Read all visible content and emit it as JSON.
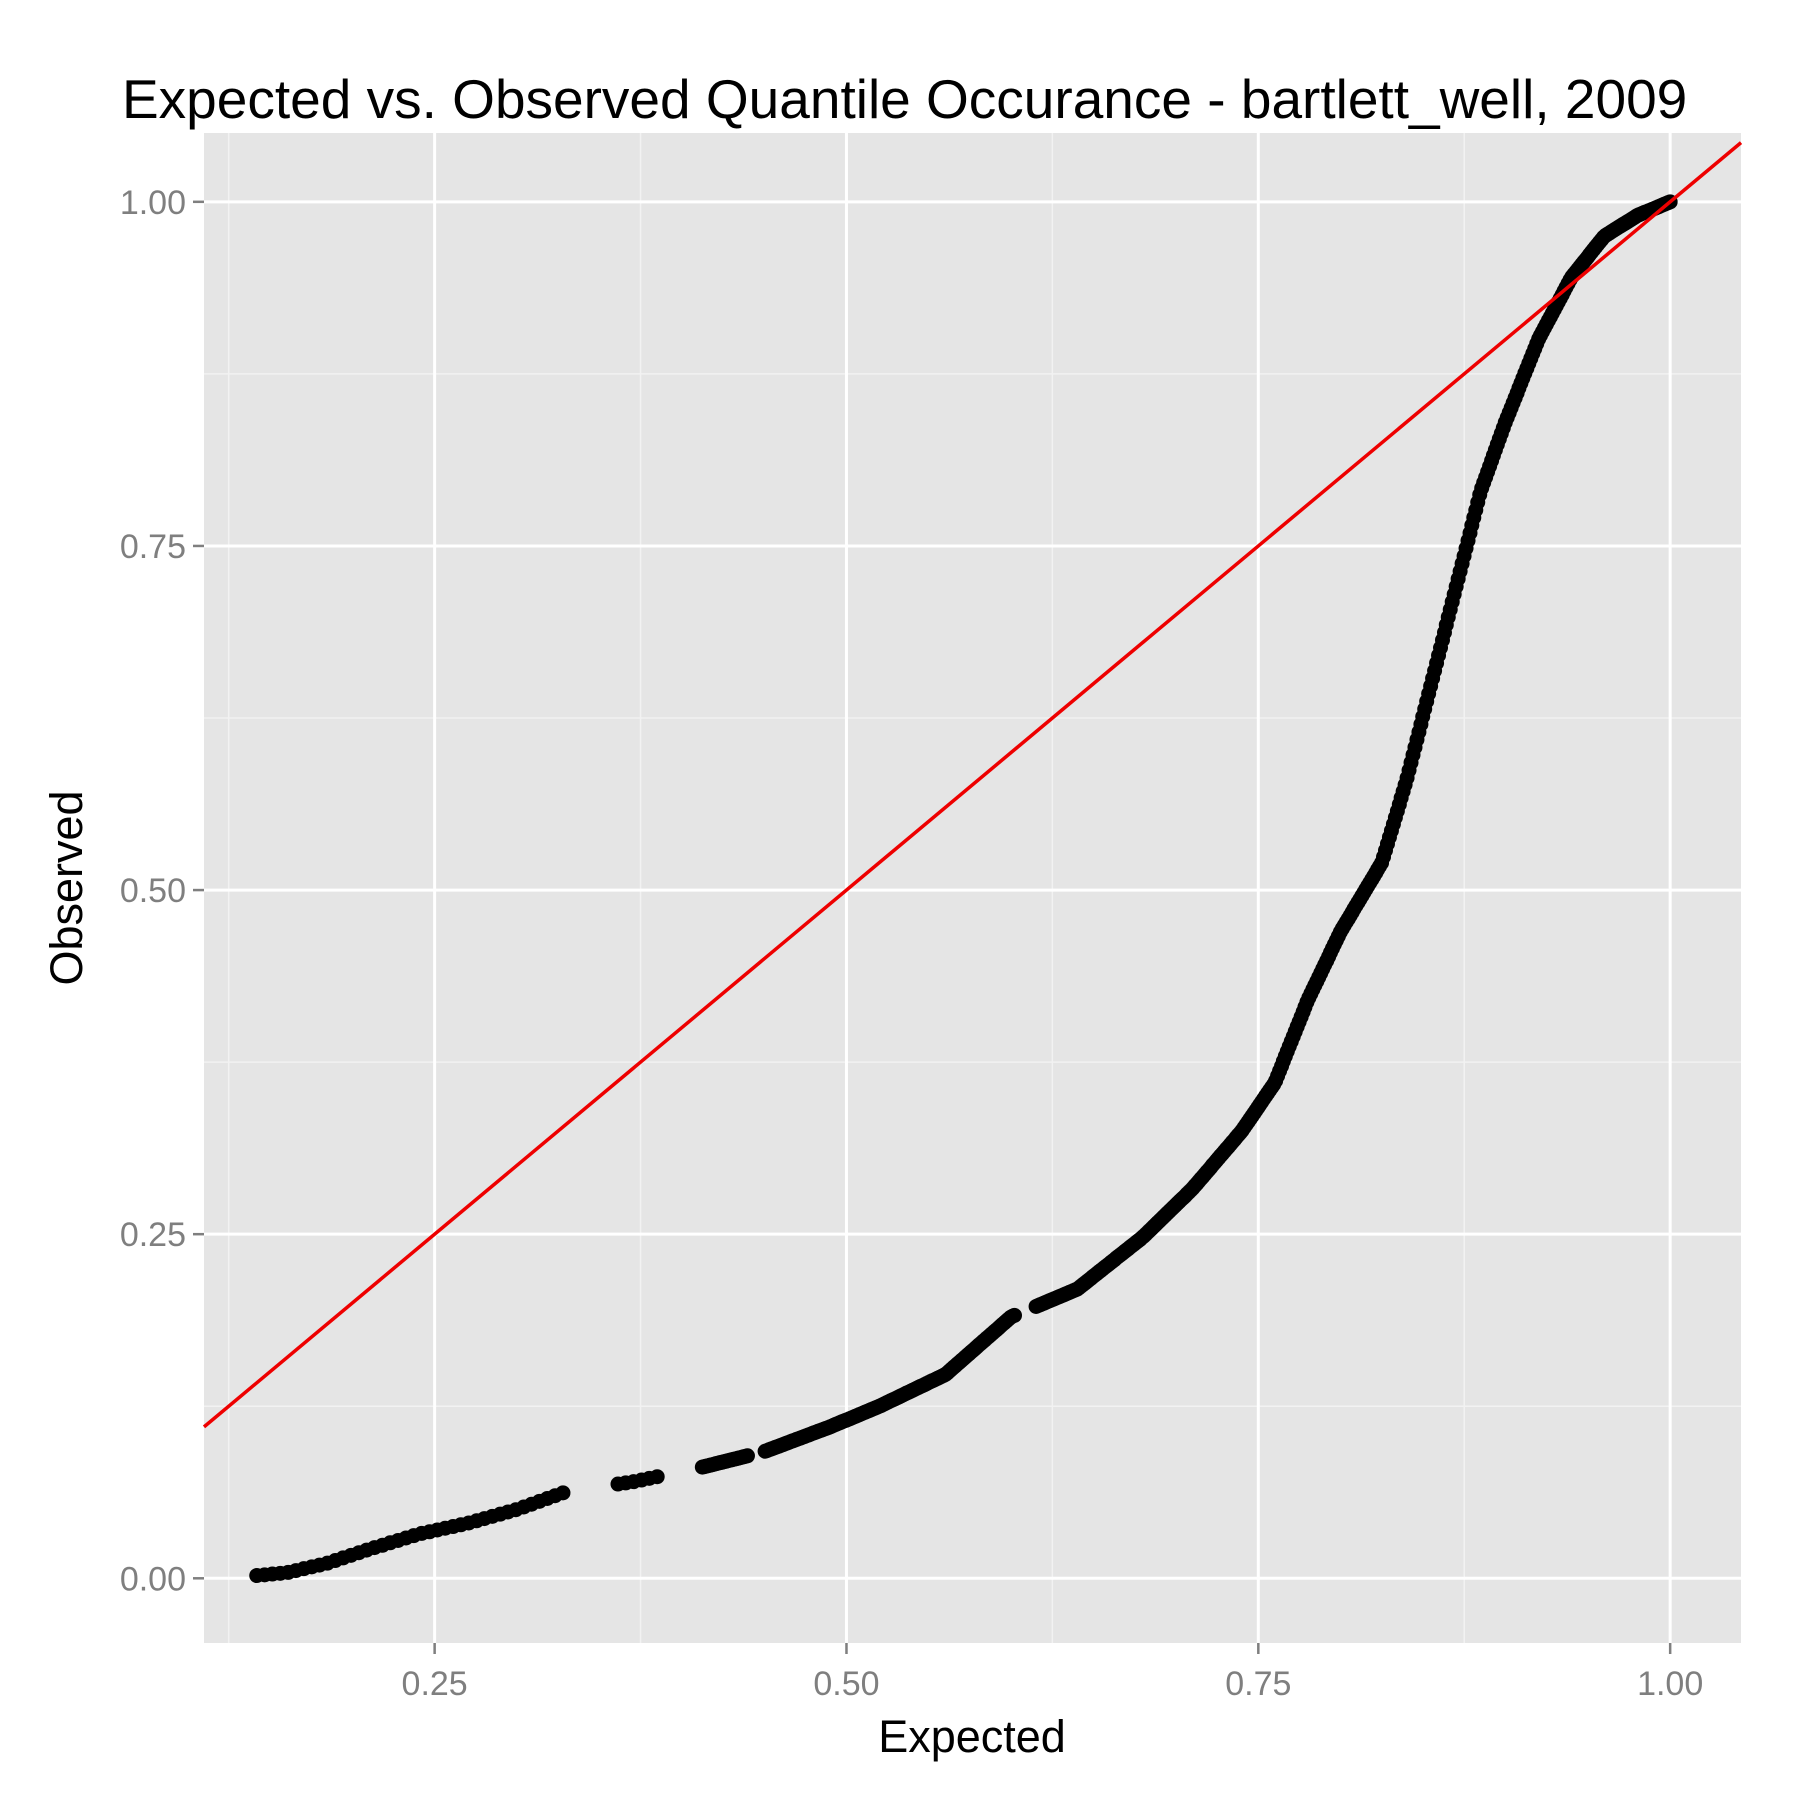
{
  "colors": {
    "panel_background": "#e5e5e5",
    "grid_major": "#ffffff",
    "grid_minor": "#f2f2f2",
    "points": "#000000",
    "reference_line": "#ee0000",
    "tick_label": "#7f7f7f"
  },
  "chart_data": {
    "type": "scatter",
    "title": "Expected vs. Observed Quantile Occurance - bartlett_well, 2009",
    "xlabel": "Expected",
    "ylabel": "Observed",
    "xlim": [
      0.11,
      1.043
    ],
    "ylim": [
      -0.047,
      1.05
    ],
    "x_ticks": [
      0.25,
      0.5,
      0.75,
      1.0
    ],
    "x_tick_labels": [
      "0.25",
      "0.50",
      "0.75",
      "1.00"
    ],
    "y_ticks": [
      0.0,
      0.25,
      0.5,
      0.75,
      1.0
    ],
    "y_tick_labels": [
      "0.00",
      "0.25",
      "0.50",
      "0.75",
      "1.00"
    ],
    "grid": true,
    "reference_line": {
      "slope": 1,
      "intercept": 0
    },
    "curve_knots": [
      [
        0.142,
        0.002
      ],
      [
        0.16,
        0.004
      ],
      [
        0.185,
        0.011
      ],
      [
        0.21,
        0.021
      ],
      [
        0.24,
        0.032
      ],
      [
        0.27,
        0.04
      ],
      [
        0.3,
        0.05
      ],
      [
        0.33,
        0.063
      ],
      [
        0.37,
        0.07
      ],
      [
        0.41,
        0.08
      ],
      [
        0.45,
        0.092
      ],
      [
        0.49,
        0.11
      ],
      [
        0.52,
        0.125
      ],
      [
        0.56,
        0.148
      ],
      [
        0.6,
        0.19
      ],
      [
        0.64,
        0.21
      ],
      [
        0.68,
        0.248
      ],
      [
        0.71,
        0.283
      ],
      [
        0.74,
        0.325
      ],
      [
        0.76,
        0.36
      ],
      [
        0.78,
        0.42
      ],
      [
        0.8,
        0.47
      ],
      [
        0.825,
        0.52
      ],
      [
        0.84,
        0.58
      ],
      [
        0.855,
        0.65
      ],
      [
        0.87,
        0.72
      ],
      [
        0.885,
        0.79
      ],
      [
        0.9,
        0.84
      ],
      [
        0.92,
        0.9
      ],
      [
        0.94,
        0.945
      ],
      [
        0.96,
        0.975
      ],
      [
        0.98,
        0.99
      ],
      [
        1.0,
        1.0
      ]
    ],
    "gaps": [
      [
        0.33,
        0.357
      ],
      [
        0.387,
        0.412
      ],
      [
        0.44,
        0.45
      ],
      [
        0.603,
        0.615
      ]
    ],
    "points": []
  }
}
